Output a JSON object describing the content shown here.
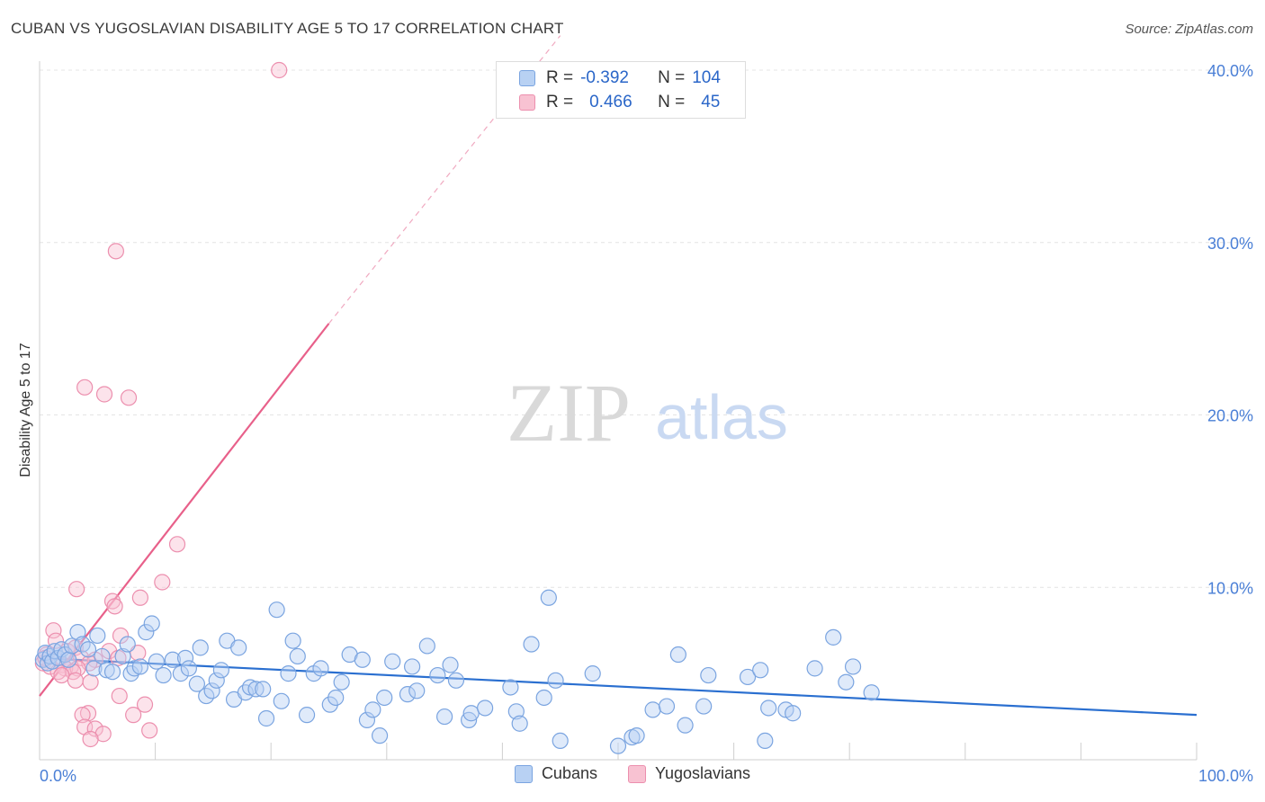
{
  "title": "CUBAN VS YUGOSLAVIAN DISABILITY AGE 5 TO 17 CORRELATION CHART",
  "source": "Source: ZipAtlas.com",
  "watermark": {
    "zip": "ZIP",
    "atlas": "atlas"
  },
  "colors": {
    "blue": "#7aa4e0",
    "blue_fill": "#b8d1f3",
    "blue_line": "#2a6fd0",
    "pink": "#ec8fae",
    "pink_fill": "#f8c2d2",
    "pink_line": "#e8608a",
    "axis_text": "#4a7fd6"
  },
  "legend": {
    "rows": [
      {
        "r_label": "R =",
        "r_value": "-0.392",
        "n_label": "N =",
        "n_value": "104"
      },
      {
        "r_label": "R =",
        "r_value": "0.466",
        "n_label": "N =",
        "n_value": "45"
      }
    ]
  },
  "bottom_legend": [
    "Cubans",
    "Yugoslavians"
  ],
  "chart_data": {
    "type": "scatter",
    "title": "CUBAN VS YUGOSLAVIAN DISABILITY AGE 5 TO 17 CORRELATION CHART",
    "xlabel": "",
    "ylabel": "Disability Age 5 to 17",
    "xlim": [
      0,
      100
    ],
    "ylim": [
      0,
      40
    ],
    "x_tick_labels": [
      "0.0%",
      "100.0%"
    ],
    "y_ticks": [
      10,
      20,
      30,
      40
    ],
    "y_tick_labels": [
      "10.0%",
      "20.0%",
      "30.0%",
      "40.0%"
    ],
    "series": [
      {
        "name": "Cubans",
        "r": -0.392,
        "n": 104,
        "trend": {
          "x0": 0,
          "y0": 5.9,
          "x1": 100,
          "y1": 2.6
        },
        "points": [
          [
            0.3,
            5.8
          ],
          [
            0.5,
            6.2
          ],
          [
            0.7,
            5.6
          ],
          [
            0.9,
            6.0
          ],
          [
            1.1,
            5.7
          ],
          [
            1.3,
            6.3
          ],
          [
            1.6,
            5.9
          ],
          [
            1.9,
            6.4
          ],
          [
            2.2,
            6.1
          ],
          [
            2.5,
            5.8
          ],
          [
            2.8,
            6.6
          ],
          [
            3.3,
            7.4
          ],
          [
            3.7,
            6.7
          ],
          [
            4.2,
            6.4
          ],
          [
            4.7,
            5.3
          ],
          [
            5.0,
            7.2
          ],
          [
            5.4,
            6.0
          ],
          [
            5.8,
            5.2
          ],
          [
            6.3,
            5.1
          ],
          [
            7.2,
            6.0
          ],
          [
            7.6,
            6.7
          ],
          [
            7.9,
            5.0
          ],
          [
            8.2,
            5.3
          ],
          [
            8.7,
            5.4
          ],
          [
            9.2,
            7.4
          ],
          [
            9.7,
            7.9
          ],
          [
            10.1,
            5.7
          ],
          [
            10.7,
            4.9
          ],
          [
            11.5,
            5.8
          ],
          [
            12.2,
            5.0
          ],
          [
            12.6,
            5.9
          ],
          [
            12.9,
            5.3
          ],
          [
            13.6,
            4.4
          ],
          [
            13.9,
            6.5
          ],
          [
            14.4,
            3.7
          ],
          [
            14.9,
            4.0
          ],
          [
            15.3,
            4.6
          ],
          [
            15.7,
            5.2
          ],
          [
            16.2,
            6.9
          ],
          [
            16.8,
            3.5
          ],
          [
            17.2,
            6.5
          ],
          [
            17.8,
            3.9
          ],
          [
            18.2,
            4.2
          ],
          [
            18.7,
            4.1
          ],
          [
            19.3,
            4.1
          ],
          [
            19.6,
            2.4
          ],
          [
            20.5,
            8.7
          ],
          [
            20.9,
            3.4
          ],
          [
            21.5,
            5.0
          ],
          [
            21.9,
            6.9
          ],
          [
            22.3,
            6.0
          ],
          [
            23.1,
            2.6
          ],
          [
            23.7,
            5.0
          ],
          [
            24.3,
            5.3
          ],
          [
            25.1,
            3.2
          ],
          [
            25.6,
            3.6
          ],
          [
            26.1,
            4.5
          ],
          [
            26.8,
            6.1
          ],
          [
            27.9,
            5.8
          ],
          [
            28.3,
            2.3
          ],
          [
            28.8,
            2.9
          ],
          [
            29.4,
            1.4
          ],
          [
            29.8,
            3.6
          ],
          [
            30.5,
            5.7
          ],
          [
            31.8,
            3.8
          ],
          [
            32.2,
            5.4
          ],
          [
            32.6,
            4.0
          ],
          [
            33.5,
            6.6
          ],
          [
            34.4,
            4.9
          ],
          [
            35.0,
            2.5
          ],
          [
            35.5,
            5.5
          ],
          [
            36.0,
            4.6
          ],
          [
            37.1,
            2.3
          ],
          [
            37.3,
            2.7
          ],
          [
            38.5,
            3.0
          ],
          [
            40.7,
            4.2
          ],
          [
            41.2,
            2.8
          ],
          [
            41.5,
            2.1
          ],
          [
            42.5,
            6.7
          ],
          [
            43.6,
            3.6
          ],
          [
            44.0,
            9.4
          ],
          [
            44.6,
            4.6
          ],
          [
            45.0,
            1.1
          ],
          [
            47.8,
            5.0
          ],
          [
            50.0,
            0.8
          ],
          [
            51.2,
            1.3
          ],
          [
            51.6,
            1.4
          ],
          [
            53.0,
            2.9
          ],
          [
            54.2,
            3.1
          ],
          [
            55.2,
            6.1
          ],
          [
            55.8,
            2.0
          ],
          [
            57.4,
            3.1
          ],
          [
            57.8,
            4.9
          ],
          [
            61.2,
            4.8
          ],
          [
            62.3,
            5.2
          ],
          [
            62.7,
            1.1
          ],
          [
            63.0,
            3.0
          ],
          [
            64.5,
            2.9
          ],
          [
            65.1,
            2.7
          ],
          [
            67.0,
            5.3
          ],
          [
            68.6,
            7.1
          ],
          [
            69.7,
            4.5
          ],
          [
            70.3,
            5.4
          ],
          [
            71.9,
            3.9
          ]
        ]
      },
      {
        "name": "Yugoslavians",
        "r": 0.466,
        "n": 45,
        "trend": {
          "x0": 0,
          "y0": 3.7,
          "x1": 25,
          "y1": 25.3,
          "dash_x1": 45,
          "dash_y1": 42.0
        },
        "points": [
          [
            20.7,
            40.0
          ],
          [
            6.6,
            29.5
          ],
          [
            3.9,
            21.6
          ],
          [
            5.6,
            21.2
          ],
          [
            7.7,
            21.0
          ],
          [
            11.9,
            12.5
          ],
          [
            10.6,
            10.3
          ],
          [
            3.2,
            9.9
          ],
          [
            8.7,
            9.4
          ],
          [
            6.3,
            9.2
          ],
          [
            6.5,
            8.9
          ],
          [
            1.2,
            7.5
          ],
          [
            7.0,
            7.2
          ],
          [
            1.4,
            6.9
          ],
          [
            2.4,
            6.3
          ],
          [
            3.1,
            6.5
          ],
          [
            6.0,
            6.3
          ],
          [
            8.5,
            6.2
          ],
          [
            0.6,
            6.1
          ],
          [
            3.6,
            5.9
          ],
          [
            4.8,
            5.8
          ],
          [
            6.8,
            5.9
          ],
          [
            2.0,
            5.5
          ],
          [
            2.7,
            5.4
          ],
          [
            0.3,
            5.6
          ],
          [
            4.3,
            5.6
          ],
          [
            0.9,
            5.4
          ],
          [
            2.2,
            5.3
          ],
          [
            3.3,
            5.3
          ],
          [
            1.6,
            5.1
          ],
          [
            2.9,
            5.1
          ],
          [
            1.9,
            4.9
          ],
          [
            3.1,
            4.6
          ],
          [
            4.4,
            4.5
          ],
          [
            6.9,
            3.7
          ],
          [
            9.1,
            3.2
          ],
          [
            4.2,
            2.7
          ],
          [
            3.7,
            2.6
          ],
          [
            8.1,
            2.6
          ],
          [
            3.9,
            1.9
          ],
          [
            4.8,
            1.8
          ],
          [
            9.5,
            1.7
          ],
          [
            5.5,
            1.5
          ],
          [
            4.4,
            1.2
          ],
          [
            0.5,
            5.9
          ]
        ]
      }
    ]
  }
}
